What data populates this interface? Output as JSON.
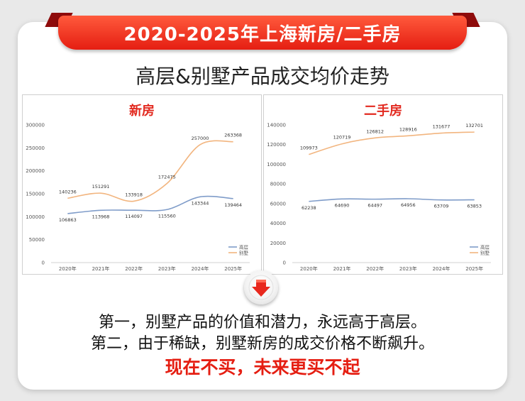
{
  "banner": {
    "title": "2020-2025年上海新房/二手房"
  },
  "subtitle": "高层&别墅产品成交均价走势",
  "chart_data": [
    {
      "type": "line",
      "title": "新房",
      "categories": [
        "2020年",
        "2021年",
        "2022年",
        "2023年",
        "2024年",
        "2025年"
      ],
      "ylim": [
        0,
        300000
      ],
      "yticks": [
        0,
        50000,
        100000,
        150000,
        200000,
        250000,
        300000
      ],
      "grid": false,
      "legend_position": "bottom-right",
      "series": [
        {
          "name": "高层",
          "color": "#7f9cc9",
          "values": [
            106863,
            113968,
            114097,
            115560,
            143344,
            139464
          ]
        },
        {
          "name": "别墅",
          "color": "#f2b57f",
          "values": [
            140236,
            151291,
            133918,
            172475,
            257000,
            263368
          ]
        }
      ]
    },
    {
      "type": "line",
      "title": "二手房",
      "categories": [
        "2020年",
        "2021年",
        "2022年",
        "2023年",
        "2024年",
        "2025年"
      ],
      "ylim": [
        0,
        140000
      ],
      "yticks": [
        0,
        20000,
        40000,
        60000,
        80000,
        100000,
        120000,
        140000
      ],
      "grid": false,
      "legend_position": "bottom-right",
      "series": [
        {
          "name": "高层",
          "color": "#7f9cc9",
          "values": [
            62238,
            64690,
            64497,
            64956,
            63709,
            63853
          ]
        },
        {
          "name": "别墅",
          "color": "#f2b57f",
          "values": [
            109973,
            120719,
            126812,
            128916,
            131677,
            132701
          ]
        }
      ]
    }
  ],
  "conclusion": {
    "line1": "第一，别墅产品的价值和潜力，永远高于高层。",
    "line2": "第二，由于稀缺，别墅新房的成交价格不断飙升。",
    "line3": "现在不买，未来更买不起"
  },
  "icons": {
    "down_arrow": "down-arrow-icon"
  }
}
